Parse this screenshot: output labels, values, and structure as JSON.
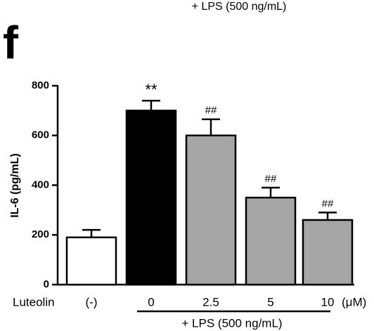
{
  "chart_data": {
    "type": "bar",
    "panel_label": "f",
    "top_text": "+ LPS (500 ng/mL)",
    "y_label": "IL-6 (pg/mL)",
    "x_label": "Luteolin",
    "x_unit": "(μM)",
    "group_label": "+ LPS (500 ng/mL)",
    "categories": [
      "(-)",
      "0",
      "2.5",
      "5",
      "10"
    ],
    "values": [
      190,
      700,
      600,
      350,
      260
    ],
    "errors": [
      30,
      40,
      65,
      40,
      30
    ],
    "colors": [
      "#ffffff",
      "#000000",
      "#a6a6a6",
      "#a6a6a6",
      "#a6a6a6"
    ],
    "annotations": [
      null,
      "**",
      "##",
      "##",
      "##"
    ],
    "ylim": [
      0,
      800
    ],
    "yticks": [
      0,
      200,
      400,
      600,
      800
    ]
  }
}
